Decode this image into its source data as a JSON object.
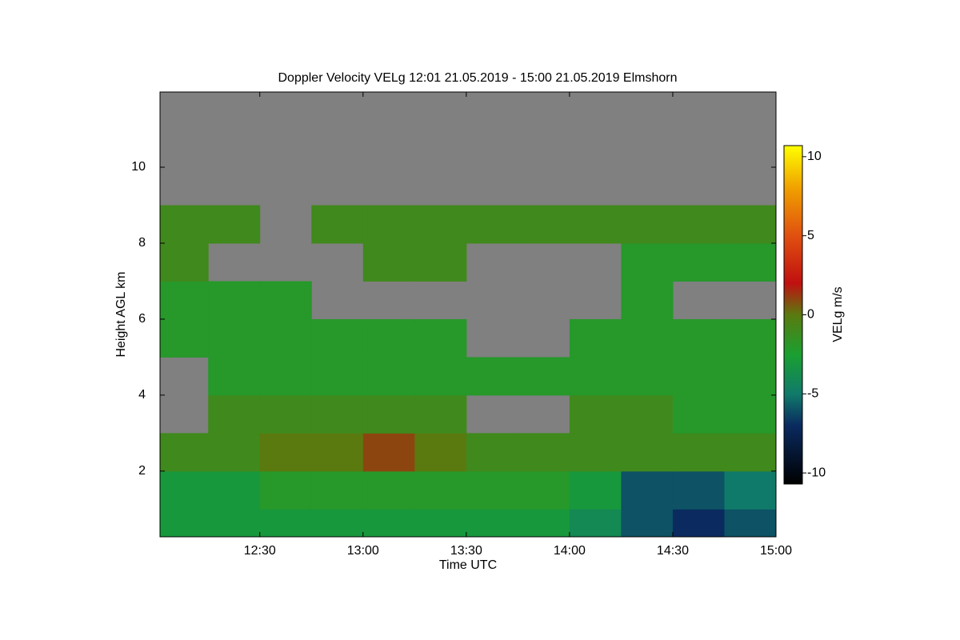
{
  "chart_data": {
    "type": "heatmap",
    "title": "Doppler Velocity VELg   12:01 21.05.2019 - 15:00 21.05.2019 Elmshorn",
    "x_label": "Time UTC",
    "y_label": "Height AGL km",
    "colorbar_label": "VELg m/s",
    "xlim": [
      721,
      900
    ],
    "ylim": [
      0.27,
      11.98
    ],
    "xticks": [
      {
        "value": 750,
        "label": "12:30"
      },
      {
        "value": 780,
        "label": "13:00"
      },
      {
        "value": 810,
        "label": "13:30"
      },
      {
        "value": 840,
        "label": "14:00"
      },
      {
        "value": 870,
        "label": "14:30"
      },
      {
        "value": 900,
        "label": "15:00"
      }
    ],
    "yticks": [
      2,
      4,
      6,
      8,
      10
    ],
    "xbins": [
      720,
      735,
      750,
      765,
      780,
      795,
      810,
      825,
      840,
      855,
      870,
      885,
      900
    ],
    "ybins": [
      0,
      1,
      2,
      3,
      4,
      5,
      6,
      7,
      8,
      9,
      10,
      11,
      12
    ],
    "values": [
      [
        -3,
        -3,
        -3,
        -3,
        -3,
        -3,
        -3,
        -3,
        -4,
        -6,
        -7,
        -6
      ],
      [
        -3,
        -3,
        -2,
        -2,
        -2,
        -2,
        -2,
        -2,
        -3,
        -6,
        -6,
        -5
      ],
      [
        -1,
        -1,
        0,
        0,
        1,
        0,
        -1,
        -1,
        -1,
        -1,
        -1,
        -1
      ],
      [
        null,
        -1,
        -1,
        -1,
        -1,
        -1,
        null,
        null,
        -1,
        -1,
        -2,
        -2
      ],
      [
        null,
        -2,
        -2,
        -2,
        -2,
        -2,
        -2,
        -2,
        -2,
        -2,
        -2,
        -2
      ],
      [
        -2,
        -2,
        -2,
        -2,
        -2,
        -2,
        null,
        null,
        -2,
        -2,
        -2,
        -2
      ],
      [
        -2,
        -2,
        -2,
        null,
        null,
        null,
        null,
        null,
        null,
        -2,
        null,
        null
      ],
      [
        -1,
        null,
        null,
        null,
        -1,
        -1,
        null,
        null,
        null,
        -2,
        -2,
        -2
      ],
      [
        -1,
        -1,
        null,
        -1,
        -1,
        -1,
        -1,
        -1,
        -1,
        -1,
        -1,
        -1
      ],
      [
        null,
        null,
        null,
        null,
        null,
        null,
        null,
        null,
        null,
        null,
        null,
        null
      ],
      [
        null,
        null,
        null,
        null,
        null,
        null,
        null,
        null,
        null,
        null,
        null,
        null
      ],
      [
        null,
        null,
        null,
        null,
        null,
        null,
        null,
        null,
        null,
        null,
        null,
        null
      ]
    ],
    "missing_color": "#808080",
    "clim": [
      -10.7,
      10.7
    ],
    "colorbar_ticks": [
      -10,
      -5,
      0,
      5,
      10
    ],
    "colorscale": [
      [
        -10.7,
        "#000000"
      ],
      [
        -7,
        "#0a2a60"
      ],
      [
        -5,
        "#107a6a"
      ],
      [
        -2.5,
        "#1aa030"
      ],
      [
        0,
        "#5a7a10"
      ],
      [
        2,
        "#c01010"
      ],
      [
        5,
        "#e05010"
      ],
      [
        8,
        "#f0a000"
      ],
      [
        10.7,
        "#ffff00"
      ]
    ]
  }
}
